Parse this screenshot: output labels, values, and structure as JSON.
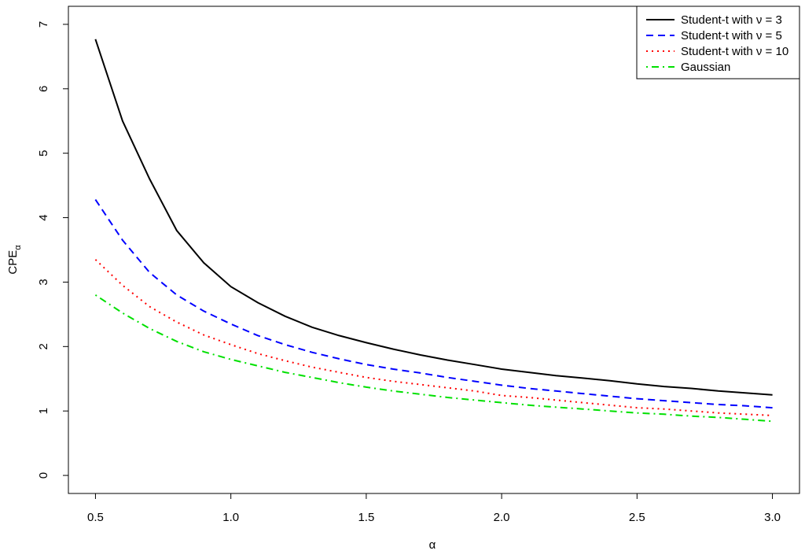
{
  "chart_data": {
    "type": "line",
    "x_label": "α",
    "y_label_main": "CPE",
    "y_label_sub": "α",
    "x": [
      0.5,
      0.6,
      0.7,
      0.8,
      0.9,
      1.0,
      1.1,
      1.2,
      1.3,
      1.4,
      1.5,
      1.6,
      1.7,
      1.8,
      1.9,
      2.0,
      2.1,
      2.2,
      2.3,
      2.4,
      2.5,
      2.6,
      2.7,
      2.8,
      2.9,
      3.0
    ],
    "series": [
      {
        "name": "Student-t with ν = 3",
        "color": "#000000",
        "linestyle": "solid",
        "values": [
          6.77,
          5.5,
          4.6,
          3.8,
          3.3,
          2.93,
          2.68,
          2.47,
          2.3,
          2.17,
          2.06,
          1.96,
          1.87,
          1.79,
          1.72,
          1.65,
          1.6,
          1.55,
          1.51,
          1.47,
          1.42,
          1.38,
          1.35,
          1.31,
          1.28,
          1.25
        ]
      },
      {
        "name": "Student-t with ν = 5",
        "color": "#0000ff",
        "linestyle": "dashed",
        "values": [
          4.28,
          3.65,
          3.15,
          2.8,
          2.55,
          2.35,
          2.17,
          2.03,
          1.91,
          1.81,
          1.72,
          1.65,
          1.59,
          1.52,
          1.46,
          1.4,
          1.35,
          1.31,
          1.27,
          1.23,
          1.19,
          1.16,
          1.13,
          1.1,
          1.08,
          1.05
        ]
      },
      {
        "name": "Student-t with ν = 10",
        "color": "#ff0000",
        "linestyle": "dotted",
        "values": [
          3.35,
          2.95,
          2.62,
          2.38,
          2.18,
          2.03,
          1.89,
          1.78,
          1.68,
          1.6,
          1.52,
          1.46,
          1.41,
          1.36,
          1.31,
          1.24,
          1.21,
          1.17,
          1.13,
          1.09,
          1.05,
          1.03,
          1.0,
          0.97,
          0.95,
          0.93
        ]
      },
      {
        "name": "Gaussian",
        "color": "#00e000",
        "linestyle": "dotdash",
        "values": [
          2.8,
          2.52,
          2.28,
          2.08,
          1.92,
          1.8,
          1.7,
          1.6,
          1.52,
          1.44,
          1.37,
          1.31,
          1.26,
          1.21,
          1.17,
          1.13,
          1.09,
          1.06,
          1.03,
          1.0,
          0.97,
          0.95,
          0.92,
          0.9,
          0.87,
          0.84
        ]
      }
    ],
    "xlim": [
      0.4,
      3.1
    ],
    "ylim": [
      -0.28,
      7.28
    ],
    "xticks": [
      0.5,
      {
        "value": 1,
        "label": "1.0"
      },
      1.5,
      {
        "value": 2,
        "label": "2.0"
      },
      2.5,
      {
        "value": 3,
        "label": "3.0"
      }
    ],
    "yticks": [
      0,
      1,
      2,
      3,
      4,
      5,
      6,
      7
    ],
    "legend": "top-right"
  }
}
